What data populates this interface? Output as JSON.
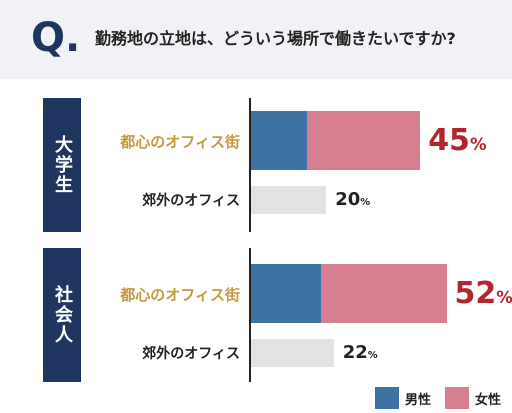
{
  "header": {
    "q_mark": "Q.",
    "question": "勤務地の立地は、どういう場所で働きたいですか?"
  },
  "colors": {
    "male": "#3d73a3",
    "female": "#d67f91",
    "other": "#e1e3e2",
    "group_label_bg": "#1f3760",
    "highlight_label": "#c39a3f",
    "highlight_value": "#b3242f"
  },
  "chart_data": {
    "type": "bar",
    "orientation": "horizontal",
    "stacked": true,
    "unit": "%",
    "xlim": [
      0,
      100
    ],
    "legend": {
      "position": "bottom-right",
      "items": [
        "男性",
        "女性"
      ]
    },
    "groups": [
      {
        "label": "大学生",
        "rows": [
          {
            "label": "都心のオフィス街",
            "total": 45,
            "highlight": true,
            "male_share_of_bar": 0.33
          },
          {
            "label": "郊外のオフィス",
            "total": 20,
            "highlight": false
          }
        ]
      },
      {
        "label": "社会人",
        "rows": [
          {
            "label": "都心のオフィス街",
            "total": 52,
            "highlight": true,
            "male_share_of_bar": 0.36
          },
          {
            "label": "郊外のオフィス",
            "total": 22,
            "highlight": false
          }
        ]
      }
    ]
  }
}
